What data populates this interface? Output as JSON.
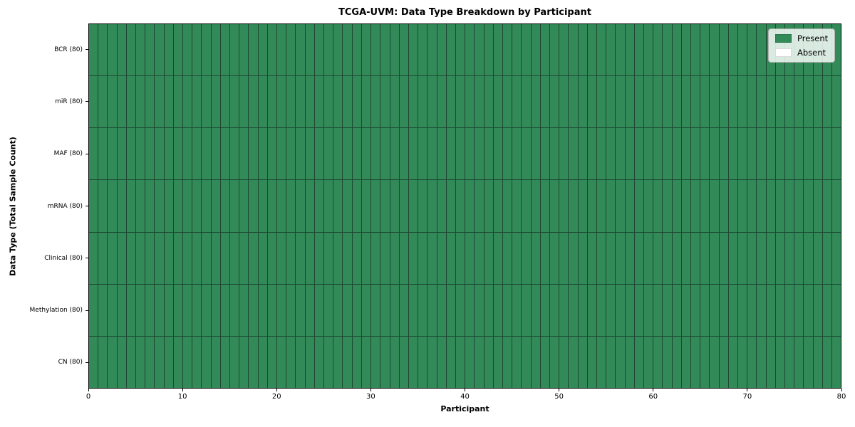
{
  "chart_data": {
    "type": "heatmap",
    "title": "TCGA-UVM: Data Type Breakdown by Participant",
    "xlabel": "Participant",
    "ylabel": "Data Type (Total Sample Count)",
    "n_participants": 80,
    "xlim": [
      0,
      80
    ],
    "x_ticks": [
      0,
      10,
      20,
      30,
      40,
      50,
      60,
      70,
      80
    ],
    "rows": [
      {
        "label": "BCR (80)",
        "present": 80,
        "absent": 0
      },
      {
        "label": "miR (80)",
        "present": 80,
        "absent": 0
      },
      {
        "label": "MAF (80)",
        "present": 80,
        "absent": 0
      },
      {
        "label": "mRNA (80)",
        "present": 80,
        "absent": 0
      },
      {
        "label": "Clinical (80)",
        "present": 80,
        "absent": 0
      },
      {
        "label": "Methylation (80)",
        "present": 80,
        "absent": 0
      },
      {
        "label": "CN (80)",
        "present": 80,
        "absent": 0
      }
    ],
    "legend": [
      {
        "label": "Present",
        "color": "#318a57"
      },
      {
        "label": "Absent",
        "color": "#ffffff"
      }
    ],
    "colors": {
      "present": "#318a57",
      "absent": "#ffffff",
      "cell_border": "#1e4733",
      "axis": "#000000"
    },
    "legend_position": "upper right",
    "grid": false
  }
}
